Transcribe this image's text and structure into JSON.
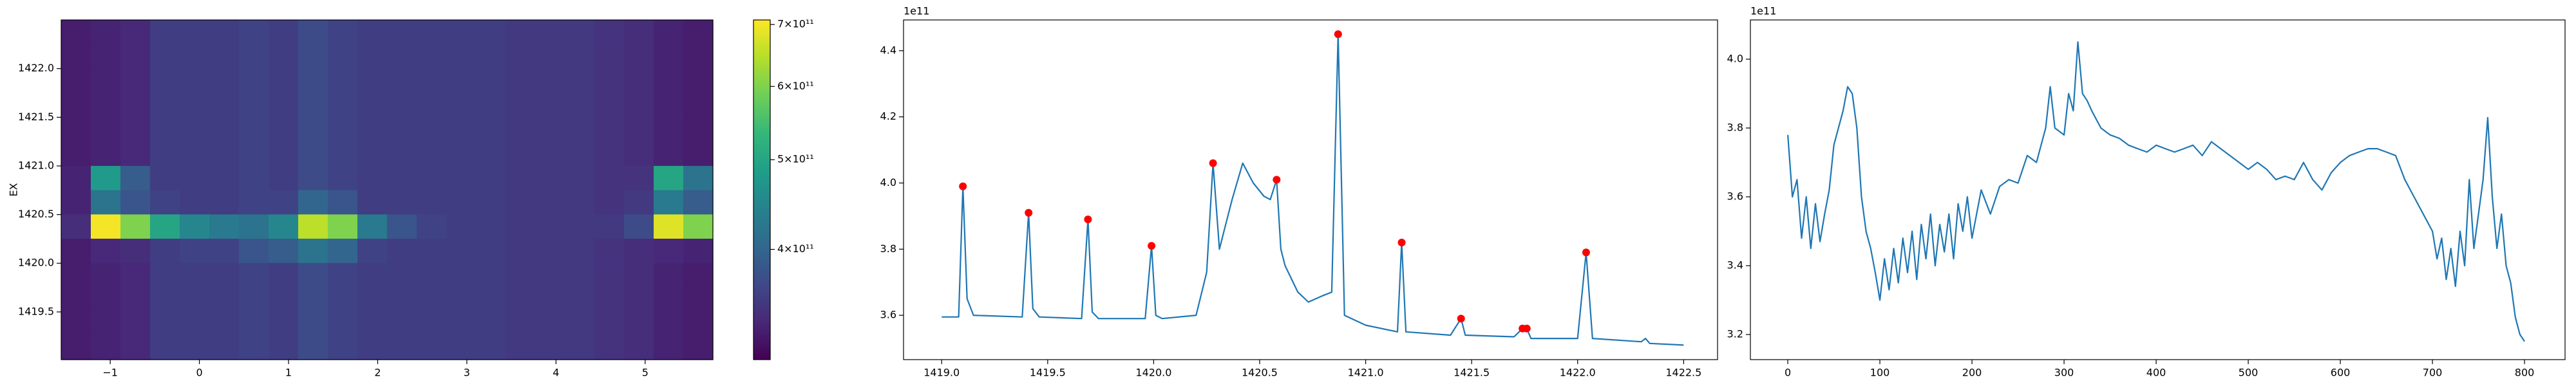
{
  "chart_data": [
    {
      "type": "heatmap",
      "ylabel": "EX",
      "colormap": "viridis",
      "xlim": [
        -1.55,
        5.76
      ],
      "ylim": [
        1419.01,
        1422.5
      ],
      "xticks": [
        {
          "value": -1,
          "label": "−1"
        },
        0,
        1,
        2,
        3,
        4,
        5
      ],
      "yticks": [
        1419.5,
        {
          "value": 1420,
          "label": "1420.0"
        },
        1420.5,
        {
          "value": 1421,
          "label": "1421.0"
        },
        1421.5,
        {
          "value": 1422,
          "label": "1422.0"
        }
      ],
      "z": [
        [
          325000000000.0,
          330000000000.0,
          335000000000.0,
          355000000000.0,
          355000000000.0,
          355000000000.0,
          360000000000.0,
          355000000000.0,
          370000000000.0,
          360000000000.0,
          355000000000.0,
          355000000000.0,
          355000000000.0,
          355000000000.0,
          355000000000.0,
          350000000000.0,
          350000000000.0,
          350000000000.0,
          345000000000.0,
          340000000000.0,
          330000000000.0,
          325000000000.0
        ],
        [
          325000000000.0,
          330000000000.0,
          335000000000.0,
          355000000000.0,
          355000000000.0,
          355000000000.0,
          360000000000.0,
          355000000000.0,
          370000000000.0,
          360000000000.0,
          355000000000.0,
          355000000000.0,
          355000000000.0,
          355000000000.0,
          355000000000.0,
          350000000000.0,
          350000000000.0,
          350000000000.0,
          345000000000.0,
          340000000000.0,
          330000000000.0,
          325000000000.0
        ],
        [
          325000000000.0,
          330000000000.0,
          335000000000.0,
          355000000000.0,
          355000000000.0,
          355000000000.0,
          360000000000.0,
          355000000000.0,
          370000000000.0,
          360000000000.0,
          355000000000.0,
          355000000000.0,
          355000000000.0,
          355000000000.0,
          355000000000.0,
          350000000000.0,
          350000000000.0,
          350000000000.0,
          345000000000.0,
          340000000000.0,
          330000000000.0,
          325000000000.0
        ],
        [
          325000000000.0,
          330000000000.0,
          335000000000.0,
          355000000000.0,
          355000000000.0,
          355000000000.0,
          360000000000.0,
          355000000000.0,
          370000000000.0,
          360000000000.0,
          355000000000.0,
          355000000000.0,
          355000000000.0,
          355000000000.0,
          355000000000.0,
          350000000000.0,
          350000000000.0,
          350000000000.0,
          345000000000.0,
          340000000000.0,
          330000000000.0,
          325000000000.0
        ],
        [
          325000000000.0,
          335000000000.0,
          340000000000.0,
          355000000000.0,
          360000000000.0,
          360000000000.0,
          380000000000.0,
          390000000000.0,
          420000000000.0,
          400000000000.0,
          360000000000.0,
          355000000000.0,
          355000000000.0,
          355000000000.0,
          355000000000.0,
          350000000000.0,
          350000000000.0,
          350000000000.0,
          345000000000.0,
          340000000000.0,
          335000000000.0,
          330000000000.0
        ],
        [
          340000000000.0,
          700000000000.0,
          600000000000.0,
          500000000000.0,
          450000000000.0,
          430000000000.0,
          420000000000.0,
          450000000000.0,
          650000000000.0,
          600000000000.0,
          430000000000.0,
          380000000000.0,
          360000000000.0,
          355000000000.0,
          355000000000.0,
          350000000000.0,
          350000000000.0,
          350000000000.0,
          350000000000.0,
          370000000000.0,
          680000000000.0,
          600000000000.0
        ],
        [
          330000000000.0,
          420000000000.0,
          380000000000.0,
          360000000000.0,
          355000000000.0,
          355000000000.0,
          360000000000.0,
          360000000000.0,
          400000000000.0,
          380000000000.0,
          355000000000.0,
          355000000000.0,
          355000000000.0,
          355000000000.0,
          355000000000.0,
          350000000000.0,
          350000000000.0,
          350000000000.0,
          345000000000.0,
          350000000000.0,
          430000000000.0,
          390000000000.0
        ],
        [
          330000000000.0,
          480000000000.0,
          390000000000.0,
          355000000000.0,
          355000000000.0,
          355000000000.0,
          360000000000.0,
          355000000000.0,
          370000000000.0,
          360000000000.0,
          355000000000.0,
          355000000000.0,
          355000000000.0,
          355000000000.0,
          355000000000.0,
          350000000000.0,
          350000000000.0,
          350000000000.0,
          345000000000.0,
          345000000000.0,
          500000000000.0,
          420000000000.0
        ],
        [
          325000000000.0,
          330000000000.0,
          335000000000.0,
          355000000000.0,
          355000000000.0,
          355000000000.0,
          360000000000.0,
          355000000000.0,
          370000000000.0,
          360000000000.0,
          355000000000.0,
          355000000000.0,
          355000000000.0,
          355000000000.0,
          355000000000.0,
          350000000000.0,
          350000000000.0,
          350000000000.0,
          345000000000.0,
          340000000000.0,
          330000000000.0,
          325000000000.0
        ],
        [
          325000000000.0,
          330000000000.0,
          335000000000.0,
          355000000000.0,
          355000000000.0,
          355000000000.0,
          360000000000.0,
          355000000000.0,
          370000000000.0,
          360000000000.0,
          355000000000.0,
          355000000000.0,
          355000000000.0,
          355000000000.0,
          355000000000.0,
          350000000000.0,
          350000000000.0,
          350000000000.0,
          345000000000.0,
          340000000000.0,
          330000000000.0,
          325000000000.0
        ],
        [
          325000000000.0,
          330000000000.0,
          335000000000.0,
          355000000000.0,
          355000000000.0,
          355000000000.0,
          360000000000.0,
          355000000000.0,
          370000000000.0,
          360000000000.0,
          355000000000.0,
          355000000000.0,
          355000000000.0,
          355000000000.0,
          355000000000.0,
          350000000000.0,
          350000000000.0,
          350000000000.0,
          345000000000.0,
          340000000000.0,
          330000000000.0,
          325000000000.0
        ],
        [
          325000000000.0,
          330000000000.0,
          335000000000.0,
          355000000000.0,
          355000000000.0,
          355000000000.0,
          360000000000.0,
          355000000000.0,
          370000000000.0,
          360000000000.0,
          355000000000.0,
          355000000000.0,
          355000000000.0,
          355000000000.0,
          355000000000.0,
          350000000000.0,
          350000000000.0,
          350000000000.0,
          345000000000.0,
          340000000000.0,
          330000000000.0,
          325000000000.0
        ],
        [
          325000000000.0,
          330000000000.0,
          335000000000.0,
          355000000000.0,
          355000000000.0,
          355000000000.0,
          360000000000.0,
          355000000000.0,
          370000000000.0,
          360000000000.0,
          355000000000.0,
          355000000000.0,
          355000000000.0,
          355000000000.0,
          355000000000.0,
          350000000000.0,
          350000000000.0,
          350000000000.0,
          345000000000.0,
          340000000000.0,
          330000000000.0,
          325000000000.0
        ],
        [
          325000000000.0,
          330000000000.0,
          335000000000.0,
          355000000000.0,
          355000000000.0,
          355000000000.0,
          360000000000.0,
          355000000000.0,
          370000000000.0,
          360000000000.0,
          355000000000.0,
          355000000000.0,
          355000000000.0,
          355000000000.0,
          355000000000.0,
          350000000000.0,
          350000000000.0,
          350000000000.0,
          345000000000.0,
          340000000000.0,
          330000000000.0,
          325000000000.0
        ]
      ],
      "colorbar": {
        "scale": "log",
        "lim": [
          304000000000.0,
          708000000000.0
        ],
        "ticks": [
          {
            "value": 400000000000.0,
            "label": "4×10¹¹"
          },
          {
            "value": 500000000000.0,
            "label": "5×10¹¹"
          },
          {
            "value": 600000000000.0,
            "label": "6×10¹¹"
          },
          {
            "value": 700000000000.0,
            "label": "7×10¹¹"
          }
        ]
      }
    },
    {
      "type": "line",
      "offset_label": "1e11",
      "xlim": [
        1418.82,
        1422.66
      ],
      "ylim": [
        3.466,
        4.493
      ],
      "xticks": [
        {
          "value": 1419,
          "label": "1419.0"
        },
        1419.5,
        {
          "value": 1420,
          "label": "1420.0"
        },
        1420.5,
        {
          "value": 1421,
          "label": "1421.0"
        },
        1421.5,
        {
          "value": 1422,
          "label": "1422.0"
        },
        1422.5
      ],
      "yticks": [
        3.6,
        3.8,
        {
          "value": 4,
          "label": "4.0"
        },
        4.2,
        4.4
      ],
      "series": [
        {
          "color": "#1f77b4",
          "x": [
            1419.0,
            1419.08,
            1419.1,
            1419.12,
            1419.15,
            1419.38,
            1419.41,
            1419.43,
            1419.46,
            1419.66,
            1419.69,
            1419.71,
            1419.74,
            1419.96,
            1419.99,
            1420.01,
            1420.04,
            1420.2,
            1420.25,
            1420.28,
            1420.31,
            1420.33,
            1420.37,
            1420.42,
            1420.47,
            1420.52,
            1420.55,
            1420.58,
            1420.6,
            1420.62,
            1420.68,
            1420.73,
            1420.8,
            1420.84,
            1420.87,
            1420.9,
            1421.0,
            1421.15,
            1421.17,
            1421.19,
            1421.4,
            1421.45,
            1421.47,
            1421.7,
            1421.74,
            1421.75,
            1421.76,
            1421.78,
            1422.0,
            1422.04,
            1422.07,
            1422.3,
            1422.32,
            1422.34,
            1422.5
          ],
          "values": [
            3.595,
            3.595,
            3.99,
            3.65,
            3.6,
            3.595,
            3.91,
            3.62,
            3.595,
            3.59,
            3.89,
            3.61,
            3.59,
            3.59,
            3.81,
            3.6,
            3.59,
            3.6,
            3.73,
            4.06,
            3.8,
            3.85,
            3.95,
            4.06,
            4.0,
            3.96,
            3.95,
            4.01,
            3.8,
            3.75,
            3.67,
            3.64,
            3.66,
            3.67,
            4.45,
            3.6,
            3.57,
            3.55,
            3.82,
            3.55,
            3.54,
            3.59,
            3.54,
            3.535,
            3.56,
            3.555,
            3.56,
            3.53,
            3.53,
            3.79,
            3.53,
            3.52,
            3.53,
            3.515,
            3.51
          ]
        },
        {
          "type": "scatter",
          "color": "#ff0000",
          "x": [
            1419.1,
            1419.41,
            1419.69,
            1419.99,
            1420.28,
            1420.58,
            1420.87,
            1421.17,
            1421.45,
            1421.74,
            1421.76,
            1422.04
          ],
          "values": [
            3.99,
            3.91,
            3.89,
            3.81,
            4.06,
            4.01,
            4.45,
            3.82,
            3.59,
            3.56,
            3.56,
            3.79
          ]
        }
      ]
    },
    {
      "type": "line",
      "offset_label": "1e11",
      "xlim": [
        -40.6,
        844
      ],
      "ylim": [
        3.127,
        4.114
      ],
      "xticks": [
        0,
        100,
        200,
        300,
        400,
        500,
        600,
        700,
        800
      ],
      "yticks": [
        3.2,
        3.4,
        3.6,
        3.8,
        {
          "value": 4,
          "label": "4.0"
        }
      ],
      "series": [
        {
          "color": "#1f77b4",
          "x": [
            0,
            5,
            10,
            15,
            20,
            25,
            30,
            35,
            40,
            45,
            50,
            55,
            60,
            65,
            70,
            75,
            80,
            85,
            90,
            95,
            100,
            105,
            110,
            115,
            120,
            125,
            130,
            135,
            140,
            145,
            150,
            155,
            160,
            165,
            170,
            175,
            180,
            185,
            190,
            195,
            200,
            210,
            220,
            230,
            240,
            250,
            260,
            270,
            280,
            285,
            290,
            300,
            305,
            310,
            315,
            320,
            325,
            330,
            340,
            350,
            360,
            370,
            380,
            390,
            400,
            410,
            420,
            430,
            440,
            450,
            460,
            470,
            480,
            490,
            500,
            510,
            520,
            530,
            540,
            550,
            560,
            570,
            580,
            590,
            600,
            610,
            620,
            630,
            640,
            650,
            660,
            670,
            680,
            690,
            700,
            705,
            710,
            715,
            720,
            725,
            730,
            735,
            740,
            745,
            750,
            755,
            760,
            765,
            770,
            775,
            780,
            785,
            790,
            795,
            800
          ],
          "values": [
            3.78,
            3.6,
            3.65,
            3.48,
            3.6,
            3.45,
            3.58,
            3.47,
            3.55,
            3.62,
            3.75,
            3.8,
            3.85,
            3.92,
            3.9,
            3.8,
            3.6,
            3.5,
            3.45,
            3.38,
            3.3,
            3.42,
            3.33,
            3.45,
            3.35,
            3.48,
            3.38,
            3.5,
            3.36,
            3.52,
            3.42,
            3.55,
            3.4,
            3.52,
            3.44,
            3.55,
            3.42,
            3.58,
            3.5,
            3.6,
            3.48,
            3.62,
            3.55,
            3.63,
            3.65,
            3.64,
            3.72,
            3.7,
            3.8,
            3.92,
            3.8,
            3.78,
            3.9,
            3.85,
            4.05,
            3.9,
            3.88,
            3.85,
            3.8,
            3.78,
            3.77,
            3.75,
            3.74,
            3.73,
            3.75,
            3.74,
            3.73,
            3.74,
            3.75,
            3.72,
            3.76,
            3.74,
            3.72,
            3.7,
            3.68,
            3.7,
            3.68,
            3.65,
            3.66,
            3.65,
            3.7,
            3.65,
            3.62,
            3.67,
            3.7,
            3.72,
            3.73,
            3.74,
            3.74,
            3.73,
            3.72,
            3.65,
            3.6,
            3.55,
            3.5,
            3.42,
            3.48,
            3.36,
            3.45,
            3.34,
            3.5,
            3.4,
            3.65,
            3.45,
            3.55,
            3.65,
            3.83,
            3.6,
            3.45,
            3.55,
            3.4,
            3.35,
            3.25,
            3.2,
            3.18
          ]
        }
      ]
    }
  ]
}
